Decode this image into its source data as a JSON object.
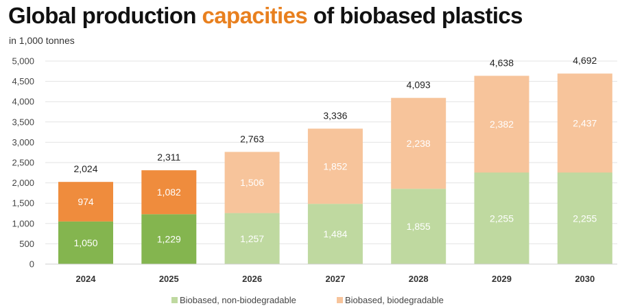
{
  "title": {
    "part1": "Global production ",
    "highlight": "capacities",
    "part2": " of biobased plastics"
  },
  "unit_label": "in 1,000 tonnes",
  "colors": {
    "highlight": "#e8801f",
    "non_biodegradable_actual": "#84b54f",
    "biodegradable_actual": "#ef8c3d",
    "non_biodegradable_forecast": "#bfd9a0",
    "biodegradable_forecast": "#f7c49b"
  },
  "chart_data": {
    "type": "bar",
    "stacked": true,
    "categories": [
      "2024",
      "2025",
      "2026",
      "2027",
      "2028",
      "2029",
      "2030"
    ],
    "series": [
      {
        "name": "Biobased, non-biodegradable",
        "values": [
          1050,
          1229,
          1257,
          1484,
          1855,
          2255,
          2255
        ],
        "labels": [
          "1,050",
          "1,229",
          "1,257",
          "1,484",
          "1,855",
          "2,255",
          "2,255"
        ]
      },
      {
        "name": "Biobased, biodegradable",
        "values": [
          974,
          1082,
          1506,
          1852,
          2238,
          2382,
          2437
        ],
        "labels": [
          "974",
          "1,082",
          "1,506",
          "1,852",
          "2,238",
          "2,382",
          "2,437"
        ]
      }
    ],
    "totals": [
      "2,024",
      "2,311",
      "2,763",
      "3,336",
      "4,093",
      "4,638",
      "4,692"
    ],
    "forecast_from_index": 2,
    "ylim": [
      0,
      5000
    ],
    "yticks": [
      0,
      500,
      1000,
      1500,
      2000,
      2500,
      3000,
      3500,
      4000,
      4500,
      5000
    ],
    "ytick_labels": [
      "0",
      "500",
      "1,000",
      "1,500",
      "2,000",
      "2,500",
      "3,000",
      "3,500",
      "4,000",
      "4,500",
      "5,000"
    ],
    "grid": true,
    "legend_position": "bottom"
  }
}
